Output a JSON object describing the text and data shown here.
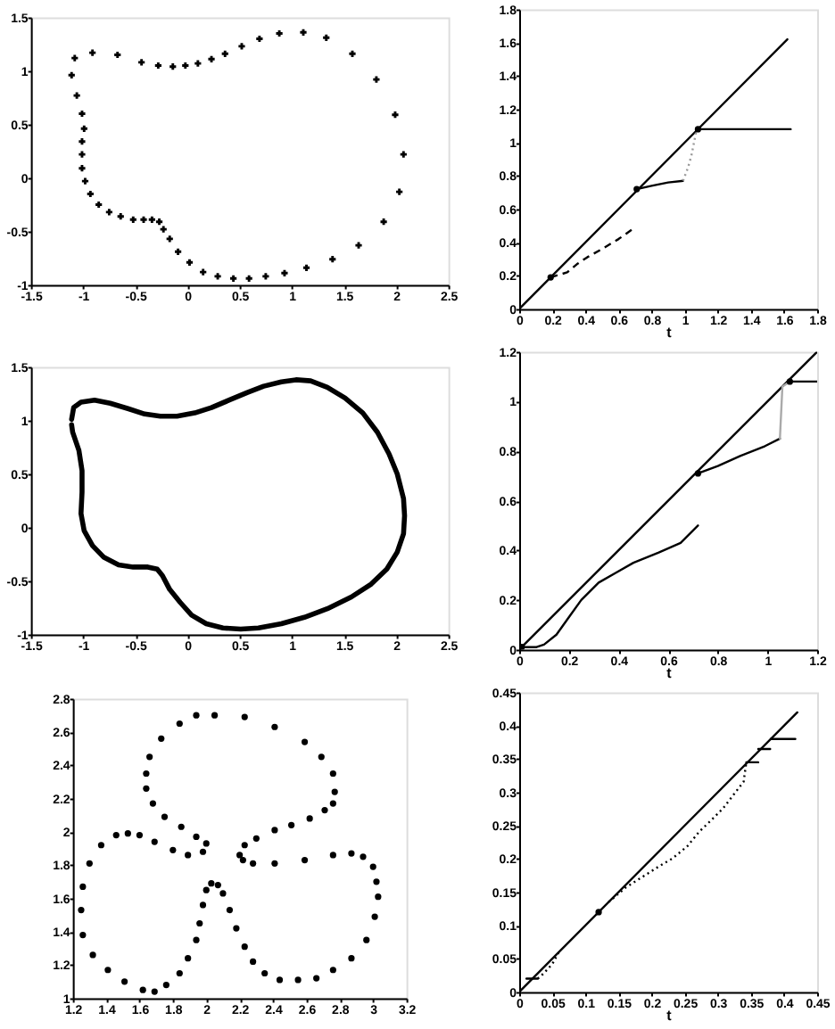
{
  "chart_data": [
    {
      "type": "scatter",
      "color": "#000000",
      "marker": "cross",
      "x": [
        -1.11,
        -1.08,
        -0.91,
        -0.67,
        -0.44,
        -0.28,
        -0.14,
        -0.02,
        0.1,
        0.23,
        0.36,
        0.52,
        0.69,
        0.88,
        1.11,
        1.33,
        1.58,
        1.81,
        1.99,
        2.07,
        2.03,
        1.88,
        1.64,
        1.39,
        1.14,
        0.93,
        0.75,
        0.59,
        0.44,
        0.29,
        0.15,
        0.02,
        -0.09,
        -0.17,
        -0.23,
        -0.27,
        -0.34,
        -0.42,
        -0.52,
        -0.64,
        -0.75,
        -0.85,
        -0.93,
        -0.98,
        -1.01,
        -1.01,
        -1.01,
        -0.99,
        -1.01,
        -1.06
      ],
      "values": [
        0.96,
        1.12,
        1.17,
        1.15,
        1.08,
        1.05,
        1.04,
        1.05,
        1.07,
        1.11,
        1.16,
        1.23,
        1.3,
        1.35,
        1.36,
        1.31,
        1.16,
        0.92,
        0.59,
        0.22,
        -0.13,
        -0.41,
        -0.63,
        -0.76,
        -0.84,
        -0.89,
        -0.92,
        -0.94,
        -0.94,
        -0.92,
        -0.88,
        -0.79,
        -0.69,
        -0.57,
        -0.48,
        -0.41,
        -0.39,
        -0.39,
        -0.39,
        -0.36,
        -0.32,
        -0.25,
        -0.15,
        -0.03,
        0.09,
        0.22,
        0.34,
        0.46,
        0.6,
        0.77
      ],
      "xlim": [
        -1.5,
        2.5
      ],
      "ylim": [
        -1,
        1.5
      ],
      "xticks": [
        -1.5,
        -1,
        -0.5,
        0,
        0.5,
        1,
        1.5,
        2,
        2.5
      ],
      "yticks": [
        -1,
        -0.5,
        0,
        0.5,
        1,
        1.5
      ]
    },
    {
      "type": "line",
      "xlabel": "t",
      "series": [
        {
          "color": "#000000",
          "x": [
            0,
            1.62
          ],
          "values": [
            0,
            1.62
          ]
        },
        {
          "color": "#000000",
          "line_style": "dashed",
          "x": [
            0.19,
            0.29,
            0.35,
            0.41,
            0.5,
            0.6,
            0.7
          ],
          "values": [
            0.19,
            0.22,
            0.27,
            0.31,
            0.36,
            0.42,
            0.49
          ]
        },
        {
          "color": "#000000",
          "x": [
            0.71,
            0.8,
            0.9,
            0.99
          ],
          "values": [
            0.72,
            0.74,
            0.76,
            0.77
          ]
        },
        {
          "color": "#999999",
          "line_style": "dotted",
          "x": [
            0.99,
            1.02,
            1.04,
            1.07
          ],
          "values": [
            0.77,
            0.85,
            0.92,
            1.07
          ]
        },
        {
          "color": "#000000",
          "x": [
            1.08,
            1.64
          ],
          "values": [
            1.08,
            1.08
          ]
        },
        {
          "type": "scatter",
          "marker": "circle",
          "color": "#000000",
          "x": [
            0.19,
            0.71,
            1.08
          ],
          "values": [
            0.19,
            0.72,
            1.08
          ]
        }
      ],
      "xlim": [
        0,
        1.8
      ],
      "ylim": [
        0,
        1.8
      ],
      "xticks": [
        0,
        0.2,
        0.4,
        0.6,
        0.8,
        1,
        1.2,
        1.4,
        1.6,
        1.8
      ],
      "yticks": [
        0,
        0.2,
        0.4,
        0.6,
        0.8,
        1,
        1.2,
        1.4,
        1.6,
        1.8
      ]
    },
    {
      "type": "line",
      "color": "#000000",
      "x": [
        -1.11,
        -1.09,
        -1.02,
        -0.89,
        -0.74,
        -0.57,
        -0.41,
        -0.26,
        -0.1,
        0.07,
        0.23,
        0.4,
        0.57,
        0.73,
        0.9,
        1.04,
        1.18,
        1.34,
        1.51,
        1.68,
        1.82,
        1.93,
        2.01,
        2.07,
        2.08,
        2.07,
        2.01,
        1.91,
        1.76,
        1.57,
        1.34,
        1.12,
        0.9,
        0.68,
        0.51,
        0.34,
        0.18,
        0.04,
        -0.07,
        -0.17,
        -0.24,
        -0.29,
        -0.38,
        -0.52,
        -0.66,
        -0.8,
        -0.91,
        -0.99,
        -1.02,
        -1.01,
        -1.01,
        -1.04,
        -1.1,
        -1.11
      ],
      "values": [
        1.01,
        1.12,
        1.17,
        1.19,
        1.16,
        1.11,
        1.06,
        1.04,
        1.04,
        1.07,
        1.12,
        1.19,
        1.26,
        1.32,
        1.36,
        1.38,
        1.37,
        1.31,
        1.21,
        1.07,
        0.89,
        0.69,
        0.5,
        0.27,
        0.11,
        -0.06,
        -0.23,
        -0.39,
        -0.53,
        -0.65,
        -0.76,
        -0.84,
        -0.9,
        -0.94,
        -0.95,
        -0.94,
        -0.9,
        -0.82,
        -0.7,
        -0.58,
        -0.45,
        -0.39,
        -0.37,
        -0.37,
        -0.35,
        -0.28,
        -0.17,
        -0.03,
        0.13,
        0.33,
        0.53,
        0.72,
        0.89,
        0.96
      ],
      "xlim": [
        -1.5,
        2.5
      ],
      "ylim": [
        -1,
        1.5
      ],
      "xticks": [
        -1.5,
        -1,
        -0.5,
        0,
        0.5,
        1,
        1.5,
        2,
        2.5
      ],
      "yticks": [
        -1,
        -0.5,
        0,
        0.5,
        1,
        1.5
      ]
    },
    {
      "type": "line",
      "xlabel": "t",
      "series": [
        {
          "color": "#000000",
          "x": [
            0,
            1.2
          ],
          "values": [
            0,
            1.2
          ]
        },
        {
          "color": "#000000",
          "x": [
            0,
            0.02,
            0.07,
            0.1,
            0.15,
            0.2,
            0.25,
            0.32,
            0.39,
            0.46,
            0.56,
            0.65,
            0.72
          ],
          "values": [
            0,
            0.01,
            0.01,
            0.02,
            0.06,
            0.13,
            0.2,
            0.27,
            0.31,
            0.35,
            0.39,
            0.43,
            0.5
          ]
        },
        {
          "color": "#000000",
          "x": [
            0.72,
            0.8,
            0.89,
            0.99,
            1.05
          ],
          "values": [
            0.71,
            0.74,
            0.78,
            0.82,
            0.85
          ]
        },
        {
          "color": "#aaaaaa",
          "x": [
            1.05,
            1.06,
            1.09
          ],
          "values": [
            0.85,
            1.06,
            1.08
          ]
        },
        {
          "color": "#000000",
          "x": [
            1.09,
            1.2
          ],
          "values": [
            1.08,
            1.08
          ]
        },
        {
          "type": "scatter",
          "marker": "circle",
          "color": "#000000",
          "x": [
            0.01,
            0.72,
            1.09
          ],
          "values": [
            0.01,
            0.71,
            1.08
          ]
        }
      ],
      "xlim": [
        0,
        1.2
      ],
      "ylim": [
        0,
        1.2
      ],
      "xticks": [
        0,
        0.2,
        0.4,
        0.6,
        0.8,
        1,
        1.2
      ],
      "yticks": [
        0,
        0.2,
        0.4,
        0.6,
        0.8,
        1,
        1.2
      ]
    },
    {
      "type": "scatter",
      "color": "#000000",
      "marker": "circle",
      "x": [
        2.05,
        2.23,
        2.41,
        2.59,
        2.69,
        2.76,
        2.77,
        2.76,
        2.71,
        2.62,
        2.51,
        2.41,
        2.3,
        2.23,
        2.2,
        2.22,
        2.28,
        2.41,
        2.59,
        2.76,
        2.87,
        2.94,
        3.0,
        3.02,
        3.03,
        3.01,
        2.96,
        2.87,
        2.76,
        2.66,
        2.55,
        2.44,
        2.35,
        2.28,
        2.23,
        2.18,
        2.14,
        2.1,
        2.07,
        2.03,
        2.0,
        1.98,
        1.96,
        1.94,
        1.89,
        1.84,
        1.76,
        1.69,
        1.62,
        1.51,
        1.41,
        1.32,
        1.26,
        1.25,
        1.26,
        1.3,
        1.37,
        1.46,
        1.53,
        1.6,
        1.69,
        1.8,
        1.89,
        1.98,
        2.0,
        1.94,
        1.85,
        1.75,
        1.68,
        1.64,
        1.64,
        1.66,
        1.73,
        1.84,
        1.94
      ],
      "values": [
        2.7,
        2.69,
        2.63,
        2.54,
        2.45,
        2.35,
        2.24,
        2.17,
        2.13,
        2.08,
        2.04,
        2.01,
        1.96,
        1.92,
        1.86,
        1.83,
        1.81,
        1.81,
        1.83,
        1.86,
        1.87,
        1.85,
        1.79,
        1.7,
        1.61,
        1.49,
        1.35,
        1.24,
        1.17,
        1.12,
        1.11,
        1.11,
        1.15,
        1.22,
        1.31,
        1.42,
        1.53,
        1.63,
        1.68,
        1.69,
        1.65,
        1.56,
        1.45,
        1.35,
        1.24,
        1.15,
        1.08,
        1.04,
        1.05,
        1.1,
        1.17,
        1.26,
        1.38,
        1.53,
        1.67,
        1.81,
        1.92,
        1.98,
        1.99,
        1.98,
        1.94,
        1.89,
        1.86,
        1.88,
        1.93,
        1.97,
        2.03,
        2.09,
        2.17,
        2.26,
        2.35,
        2.45,
        2.56,
        2.65,
        2.7
      ],
      "xlim": [
        1.2,
        3.2
      ],
      "ylim": [
        1,
        2.8
      ],
      "xticks": [
        1.2,
        1.4,
        1.6,
        1.8,
        2,
        2.2,
        2.4,
        2.6,
        2.8,
        3,
        3.2
      ],
      "yticks": [
        1,
        1.2,
        1.4,
        1.6,
        1.8,
        2,
        2.2,
        2.4,
        2.6,
        2.8
      ]
    },
    {
      "type": "line",
      "xlabel": "t",
      "series": [
        {
          "color": "#000000",
          "x": [
            0,
            0.42
          ],
          "values": [
            0,
            0.42
          ]
        },
        {
          "color": "#000000",
          "x": [
            0.011,
            0.028
          ],
          "values": [
            0.02,
            0.02
          ]
        },
        {
          "color": "#000000",
          "line_style": "dotted",
          "x": [
            0.028,
            0.037,
            0.05,
            0.06
          ],
          "values": [
            0.02,
            0.028,
            0.042,
            0.06
          ]
        },
        {
          "color": "#000000",
          "line_style": "dotted",
          "x": [
            0.135,
            0.161,
            0.188,
            0.21,
            0.232,
            0.254,
            0.272,
            0.29,
            0.308,
            0.325,
            0.339,
            0.343
          ],
          "values": [
            0.135,
            0.157,
            0.174,
            0.188,
            0.201,
            0.219,
            0.241,
            0.258,
            0.276,
            0.298,
            0.316,
            0.345
          ]
        },
        {
          "color": "#000000",
          "x": [
            0.343,
            0.361
          ],
          "values": [
            0.345,
            0.345
          ]
        },
        {
          "color": "#000000",
          "x": [
            0.361,
            0.379
          ],
          "values": [
            0.365,
            0.365
          ]
        },
        {
          "color": "#000000",
          "x": [
            0.38,
            0.417
          ],
          "values": [
            0.38,
            0.38
          ]
        },
        {
          "type": "scatter",
          "marker": "circle",
          "color": "#000000",
          "x": [
            0.12
          ],
          "values": [
            0.12
          ]
        }
      ],
      "xlim": [
        0,
        0.45
      ],
      "ylim": [
        0,
        0.45
      ],
      "xticks": [
        0,
        0.05,
        0.1,
        0.15,
        0.2,
        0.25,
        0.3,
        0.35,
        0.4,
        0.45
      ],
      "yticks": [
        0,
        0.05,
        0.1,
        0.15,
        0.2,
        0.25,
        0.3,
        0.35,
        0.4,
        0.45
      ]
    }
  ]
}
